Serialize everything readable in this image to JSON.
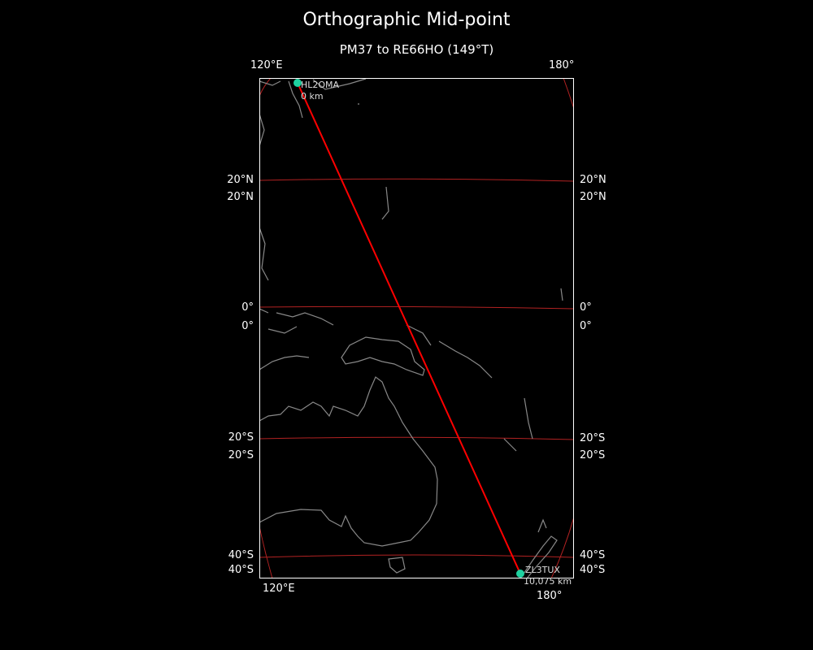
{
  "title": "Orthographic Mid-point",
  "subtitle": "PM37 to RE66HO (149°T)",
  "map": {
    "projection": "orthographic",
    "background": "#000000",
    "coastline_color": "#888888",
    "graticule_color": "#b22222",
    "path_color": "#ff0000",
    "marker_color": "#1fd1a0",
    "lon_labels_top": [
      "120°E",
      "180°"
    ],
    "lon_labels_bottom": [
      "120°E",
      "180°"
    ],
    "lat_labels": [
      "20°N",
      "0°",
      "20°S",
      "40°S"
    ]
  },
  "stations": [
    {
      "call": "HL2OMA",
      "distance": "0 km"
    },
    {
      "call": "ZL3TUX",
      "distance": "10,075 km"
    }
  ]
}
